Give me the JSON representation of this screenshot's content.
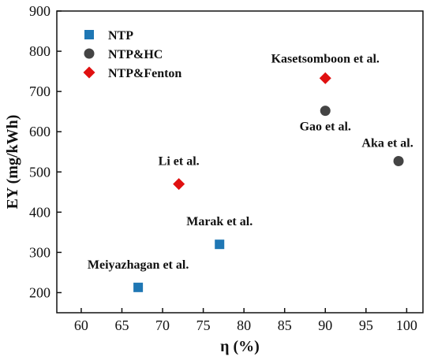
{
  "chart_data": {
    "type": "scatter",
    "xlabel": "η (%)",
    "ylabel": "EY (mg/kWh)",
    "xlim": [
      57,
      102
    ],
    "ylim": [
      150,
      900
    ],
    "xticks": [
      60,
      65,
      70,
      75,
      80,
      85,
      90,
      95,
      100
    ],
    "yticks": [
      200,
      300,
      400,
      500,
      600,
      700,
      800,
      900
    ],
    "grid": false,
    "legend_position": "top-left",
    "series": [
      {
        "name": "NTP",
        "marker": "square",
        "color": "#1f77b4",
        "points": [
          {
            "x": 67,
            "y": 213,
            "label": "Meiyazhagan et al."
          },
          {
            "x": 77,
            "y": 320,
            "label": "Marak et al."
          }
        ]
      },
      {
        "name": "NTP&HC",
        "marker": "circle",
        "color": "#444444",
        "points": [
          {
            "x": 90,
            "y": 652,
            "label": "Gao et al."
          },
          {
            "x": 99,
            "y": 527,
            "label": "Aka et al."
          }
        ]
      },
      {
        "name": "NTP&Fenton",
        "marker": "diamond",
        "color": "#e01010",
        "points": [
          {
            "x": 72,
            "y": 470,
            "label": "Li et al."
          },
          {
            "x": 90,
            "y": 733,
            "label": "Kasetsomboon et al."
          }
        ]
      }
    ]
  }
}
